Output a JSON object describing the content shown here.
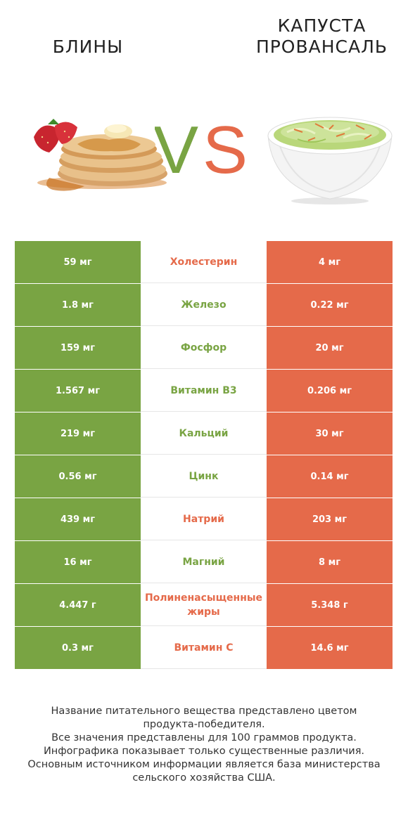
{
  "header": {
    "left_title": "БЛИНЫ",
    "right_title_line1": "КАПУСТА",
    "right_title_line2": "ПРОВАНСАЛЬ",
    "vs_v": "V",
    "vs_s": "S",
    "colors": {
      "left": "#79a443",
      "right": "#e56a4a"
    }
  },
  "rows": [
    {
      "left": "59 мг",
      "nutrient": "Холестерин",
      "right": "4 мг",
      "winner": "right"
    },
    {
      "left": "1.8 мг",
      "nutrient": "Железо",
      "right": "0.22 мг",
      "winner": "left"
    },
    {
      "left": "159 мг",
      "nutrient": "Фосфор",
      "right": "20 мг",
      "winner": "left"
    },
    {
      "left": "1.567 мг",
      "nutrient": "Витамин B3",
      "right": "0.206 мг",
      "winner": "left"
    },
    {
      "left": "219 мг",
      "nutrient": "Кальций",
      "right": "30 мг",
      "winner": "left"
    },
    {
      "left": "0.56 мг",
      "nutrient": "Цинк",
      "right": "0.14 мг",
      "winner": "left"
    },
    {
      "left": "439 мг",
      "nutrient": "Натрий",
      "right": "203 мг",
      "winner": "right"
    },
    {
      "left": "16 мг",
      "nutrient": "Магний",
      "right": "8 мг",
      "winner": "left"
    },
    {
      "left": "4.447 г",
      "nutrient": "Полиненасыщенные жиры",
      "right": "5.348 г",
      "winner": "right"
    },
    {
      "left": "0.3 мг",
      "nutrient": "Витамин C",
      "right": "14.6 мг",
      "winner": "right"
    }
  ],
  "footer": {
    "line1": "Название питательного вещества представлено цветом",
    "line2": "продукта-победителя.",
    "line3": "Все значения представлены для 100 граммов продукта.",
    "line4": "Инфографика показывает только существенные различия.",
    "line5": "Основным источником информации является база министерства",
    "line6": "сельского хозяйства США."
  }
}
